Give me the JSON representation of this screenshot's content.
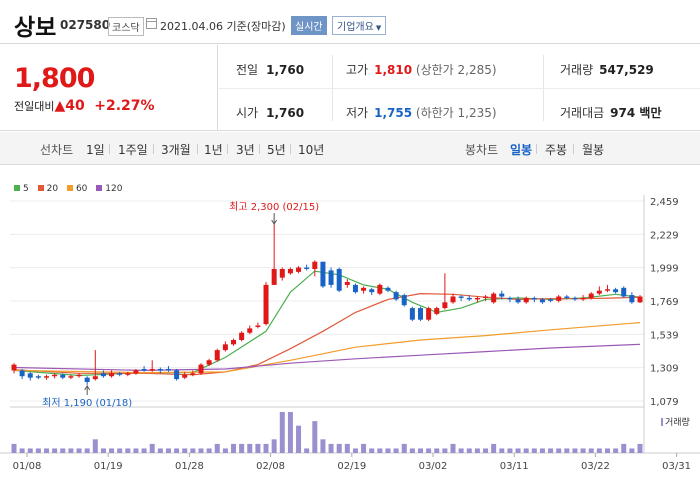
{
  "header": {
    "stock_name": "상보",
    "stock_code": "027580",
    "market": "코스닥",
    "date_text": "2021.04.06 기준(장마감)",
    "live_button": "실시간",
    "company_button": "기업개요"
  },
  "quote": {
    "price": "1,800",
    "change_label": "전일대비",
    "change_amount": "40",
    "change_pct": "+2.27%",
    "prev_close_label": "전일",
    "prev_close": "1,760",
    "high_label": "고가",
    "high": "1,810",
    "upper_limit": "(상한가 2,285)",
    "volume_label": "거래량",
    "volume": "547,529",
    "open_label": "시가",
    "open": "1,760",
    "low_label": "저가",
    "low": "1,755",
    "lower_limit": "(하한가 1,235)",
    "amount_label": "거래대금",
    "amount": "974 백만"
  },
  "tabs": {
    "line_label": "선차트",
    "periods": [
      "1일",
      "1주일",
      "3개월",
      "1년",
      "3년",
      "5년",
      "10년"
    ],
    "candle_label": "봉차트",
    "candles": [
      "일봉",
      "주봉",
      "월봉"
    ],
    "selected_candle": "일봉"
  },
  "colors": {
    "up": "#e01818",
    "down": "#1a63c6",
    "ma5": "#4caf50",
    "ma20": "#e05a3a",
    "ma60": "#f39c29",
    "ma120": "#9b59b6",
    "volume": "#9b8fd0"
  },
  "chart_data": {
    "type": "candlestick",
    "legend": [
      "5",
      "20",
      "60",
      "120"
    ],
    "y_ticks": [
      "2,459",
      "2,229",
      "1,999",
      "1,769",
      "1,539",
      "1,309",
      "1,079"
    ],
    "ylim": [
      1079,
      2459
    ],
    "x_ticks": [
      "01/08",
      "01/19",
      "01/28",
      "02/08",
      "02/19",
      "03/02",
      "03/11",
      "03/22",
      "03/31"
    ],
    "volume_label": "거래량",
    "annotation_high": "최고 2,300 (02/15)",
    "annotation_low": "최저 1,190 (01/18)",
    "candles": [
      {
        "o": 1290,
        "c": 1330,
        "h": 1340,
        "l": 1270
      },
      {
        "o": 1290,
        "c": 1250,
        "h": 1300,
        "l": 1230
      },
      {
        "o": 1270,
        "c": 1240,
        "h": 1280,
        "l": 1220
      },
      {
        "o": 1250,
        "c": 1240,
        "h": 1260,
        "l": 1230
      },
      {
        "o": 1240,
        "c": 1250,
        "h": 1260,
        "l": 1225
      },
      {
        "o": 1250,
        "c": 1260,
        "h": 1270,
        "l": 1235
      },
      {
        "o": 1260,
        "c": 1240,
        "h": 1270,
        "l": 1230
      },
      {
        "o": 1240,
        "c": 1250,
        "h": 1260,
        "l": 1230
      },
      {
        "o": 1250,
        "c": 1260,
        "h": 1270,
        "l": 1240
      },
      {
        "o": 1240,
        "c": 1210,
        "h": 1250,
        "l": 1190
      },
      {
        "o": 1230,
        "c": 1250,
        "h": 1430,
        "l": 1220
      },
      {
        "o": 1270,
        "c": 1250,
        "h": 1290,
        "l": 1240
      },
      {
        "o": 1250,
        "c": 1270,
        "h": 1290,
        "l": 1240
      },
      {
        "o": 1270,
        "c": 1260,
        "h": 1280,
        "l": 1250
      },
      {
        "o": 1260,
        "c": 1270,
        "h": 1280,
        "l": 1250
      },
      {
        "o": 1270,
        "c": 1290,
        "h": 1300,
        "l": 1260
      },
      {
        "o": 1300,
        "c": 1290,
        "h": 1320,
        "l": 1280
      },
      {
        "o": 1290,
        "c": 1300,
        "h": 1360,
        "l": 1280
      },
      {
        "o": 1300,
        "c": 1290,
        "h": 1310,
        "l": 1270
      },
      {
        "o": 1300,
        "c": 1290,
        "h": 1320,
        "l": 1280
      },
      {
        "o": 1290,
        "c": 1230,
        "h": 1300,
        "l": 1220
      },
      {
        "o": 1240,
        "c": 1260,
        "h": 1280,
        "l": 1230
      },
      {
        "o": 1260,
        "c": 1270,
        "h": 1290,
        "l": 1250
      },
      {
        "o": 1270,
        "c": 1330,
        "h": 1340,
        "l": 1260
      },
      {
        "o": 1330,
        "c": 1360,
        "h": 1370,
        "l": 1320
      },
      {
        "o": 1360,
        "c": 1430,
        "h": 1440,
        "l": 1350
      },
      {
        "o": 1430,
        "c": 1470,
        "h": 1490,
        "l": 1420
      },
      {
        "o": 1470,
        "c": 1500,
        "h": 1510,
        "l": 1460
      },
      {
        "o": 1500,
        "c": 1550,
        "h": 1560,
        "l": 1490
      },
      {
        "o": 1550,
        "c": 1580,
        "h": 1600,
        "l": 1540
      },
      {
        "o": 1590,
        "c": 1600,
        "h": 1620,
        "l": 1580
      },
      {
        "o": 1610,
        "c": 1880,
        "h": 1900,
        "l": 1600
      },
      {
        "o": 1880,
        "c": 1990,
        "h": 2300,
        "l": 1880
      },
      {
        "o": 1930,
        "c": 1990,
        "h": 2000,
        "l": 1910
      },
      {
        "o": 1960,
        "c": 1990,
        "h": 2000,
        "l": 1950
      },
      {
        "o": 1970,
        "c": 2000,
        "h": 2010,
        "l": 1960
      },
      {
        "o": 2000,
        "c": 1990,
        "h": 2020,
        "l": 1980
      },
      {
        "o": 1990,
        "c": 2040,
        "h": 2050,
        "l": 1940
      },
      {
        "o": 2040,
        "c": 1870,
        "h": 2040,
        "l": 1860
      },
      {
        "o": 1980,
        "c": 1880,
        "h": 2000,
        "l": 1860
      },
      {
        "o": 1990,
        "c": 1840,
        "h": 2000,
        "l": 1830
      },
      {
        "o": 1880,
        "c": 1900,
        "h": 1920,
        "l": 1860
      },
      {
        "o": 1880,
        "c": 1830,
        "h": 1890,
        "l": 1820
      },
      {
        "o": 1840,
        "c": 1860,
        "h": 1870,
        "l": 1820
      },
      {
        "o": 1850,
        "c": 1830,
        "h": 1860,
        "l": 1810
      },
      {
        "o": 1820,
        "c": 1880,
        "h": 1890,
        "l": 1810
      },
      {
        "o": 1860,
        "c": 1840,
        "h": 1870,
        "l": 1830
      },
      {
        "o": 1830,
        "c": 1780,
        "h": 1840,
        "l": 1770
      },
      {
        "o": 1810,
        "c": 1740,
        "h": 1820,
        "l": 1730
      },
      {
        "o": 1720,
        "c": 1640,
        "h": 1730,
        "l": 1630
      },
      {
        "o": 1720,
        "c": 1640,
        "h": 1730,
        "l": 1630
      },
      {
        "o": 1640,
        "c": 1720,
        "h": 1730,
        "l": 1630
      },
      {
        "o": 1680,
        "c": 1720,
        "h": 1730,
        "l": 1670
      },
      {
        "o": 1720,
        "c": 1760,
        "h": 1960,
        "l": 1710
      },
      {
        "o": 1760,
        "c": 1800,
        "h": 1820,
        "l": 1750
      },
      {
        "o": 1800,
        "c": 1790,
        "h": 1810,
        "l": 1770
      },
      {
        "o": 1790,
        "c": 1780,
        "h": 1810,
        "l": 1770
      },
      {
        "o": 1780,
        "c": 1790,
        "h": 1800,
        "l": 1760
      },
      {
        "o": 1790,
        "c": 1800,
        "h": 1810,
        "l": 1770
      },
      {
        "o": 1760,
        "c": 1820,
        "h": 1830,
        "l": 1750
      },
      {
        "o": 1820,
        "c": 1800,
        "h": 1840,
        "l": 1780
      },
      {
        "o": 1790,
        "c": 1780,
        "h": 1800,
        "l": 1760
      },
      {
        "o": 1780,
        "c": 1760,
        "h": 1800,
        "l": 1750
      },
      {
        "o": 1760,
        "c": 1790,
        "h": 1800,
        "l": 1750
      },
      {
        "o": 1790,
        "c": 1780,
        "h": 1800,
        "l": 1760
      },
      {
        "o": 1780,
        "c": 1760,
        "h": 1790,
        "l": 1750
      },
      {
        "o": 1780,
        "c": 1770,
        "h": 1790,
        "l": 1760
      },
      {
        "o": 1770,
        "c": 1800,
        "h": 1810,
        "l": 1760
      },
      {
        "o": 1800,
        "c": 1790,
        "h": 1810,
        "l": 1780
      },
      {
        "o": 1790,
        "c": 1780,
        "h": 1800,
        "l": 1770
      },
      {
        "o": 1780,
        "c": 1790,
        "h": 1810,
        "l": 1770
      },
      {
        "o": 1790,
        "c": 1820,
        "h": 1830,
        "l": 1780
      },
      {
        "o": 1820,
        "c": 1840,
        "h": 1870,
        "l": 1810
      },
      {
        "o": 1840,
        "c": 1850,
        "h": 1880,
        "l": 1830
      },
      {
        "o": 1850,
        "c": 1830,
        "h": 1860,
        "l": 1820
      },
      {
        "o": 1860,
        "c": 1800,
        "h": 1870,
        "l": 1790
      },
      {
        "o": 1810,
        "c": 1760,
        "h": 1830,
        "l": 1750
      },
      {
        "o": 1760,
        "c": 1800,
        "h": 1810,
        "l": 1755
      }
    ],
    "volume": [
      2,
      1,
      1,
      1,
      1,
      1,
      1,
      1,
      1,
      1,
      3,
      1,
      1,
      1,
      1,
      1,
      1,
      2,
      1,
      1,
      1,
      1,
      1,
      1,
      1,
      2,
      1,
      2,
      2,
      2,
      2,
      2,
      3,
      9,
      9,
      6,
      1,
      7,
      3,
      2,
      2,
      2,
      1,
      2,
      1,
      1,
      1,
      1,
      2,
      1,
      1,
      1,
      1,
      1,
      2,
      1,
      1,
      1,
      1,
      2,
      1,
      1,
      1,
      1,
      1,
      1,
      1,
      1,
      1,
      1,
      1,
      1,
      1,
      1,
      1,
      2,
      1,
      2
    ],
    "ma": {
      "5": [
        [
          0,
          1290
        ],
        [
          8,
          1255
        ],
        [
          16,
          1275
        ],
        [
          22,
          1275
        ],
        [
          26,
          1380
        ],
        [
          31,
          1560
        ],
        [
          34,
          1830
        ],
        [
          37,
          1975
        ],
        [
          40,
          1950
        ],
        [
          43,
          1880
        ],
        [
          46,
          1850
        ],
        [
          49,
          1760
        ],
        [
          52,
          1690
        ],
        [
          55,
          1720
        ],
        [
          58,
          1780
        ],
        [
          62,
          1790
        ],
        [
          66,
          1780
        ],
        [
          70,
          1790
        ],
        [
          74,
          1815
        ],
        [
          77,
          1795
        ]
      ],
      "20": [
        [
          0,
          1295
        ],
        [
          8,
          1270
        ],
        [
          16,
          1270
        ],
        [
          22,
          1260
        ],
        [
          26,
          1280
        ],
        [
          30,
          1330
        ],
        [
          34,
          1440
        ],
        [
          38,
          1560
        ],
        [
          42,
          1690
        ],
        [
          46,
          1780
        ],
        [
          50,
          1820
        ],
        [
          54,
          1815
        ],
        [
          58,
          1795
        ],
        [
          62,
          1780
        ],
        [
          66,
          1785
        ],
        [
          70,
          1785
        ],
        [
          74,
          1790
        ],
        [
          77,
          1795
        ]
      ],
      "60": [
        [
          0,
          1290
        ],
        [
          16,
          1275
        ],
        [
          26,
          1280
        ],
        [
          34,
          1360
        ],
        [
          42,
          1450
        ],
        [
          50,
          1500
        ],
        [
          58,
          1530
        ],
        [
          66,
          1570
        ],
        [
          77,
          1620
        ]
      ],
      "120": [
        [
          0,
          1310
        ],
        [
          16,
          1290
        ],
        [
          26,
          1300
        ],
        [
          34,
          1340
        ],
        [
          42,
          1370
        ],
        [
          50,
          1395
        ],
        [
          58,
          1420
        ],
        [
          66,
          1445
        ],
        [
          77,
          1470
        ]
      ]
    }
  }
}
